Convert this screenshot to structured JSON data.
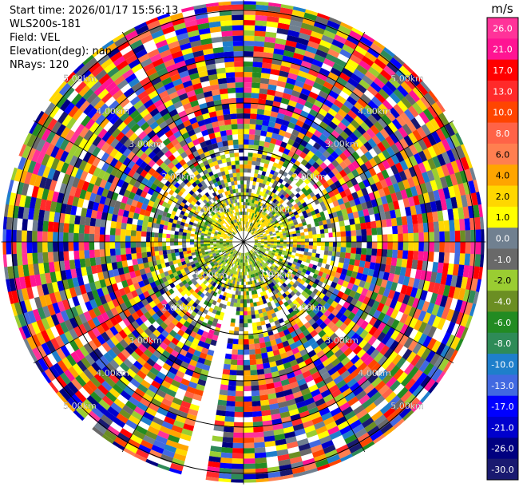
{
  "header": {
    "start_time": "Start time: 2026/01/17 15:56:13",
    "instrument": "WLS200s-181",
    "field": "Field: VEL",
    "elevation": "Elevation(deg): nan",
    "nrays": "NRays: 120"
  },
  "chart_data": {
    "type": "heatmap",
    "projection": "polar-ppi",
    "field": "VEL",
    "units": "m/s",
    "n_rays": 120,
    "range_rings_km": [
      1,
      2,
      3,
      4,
      5
    ],
    "ring_labels": [
      "1.00km",
      "2.00km",
      "3.00km",
      "4.00km",
      "5.00km"
    ],
    "max_range_km": 5.2,
    "missing_azimuth_deg": [
      190,
      194
    ],
    "colorbar": {
      "label": "m/s",
      "ticks": [
        "26.0",
        "21.0",
        "17.0",
        "13.0",
        "10.0",
        "8.0",
        "6.0",
        "4.0",
        "2.0",
        "1.0",
        "0.0",
        "-1.0",
        "-2.0",
        "-4.0",
        "-6.0",
        "-8.0",
        "-10.0",
        "-13.0",
        "-17.0",
        "-21.0",
        "-26.0",
        "-30.0"
      ],
      "colors": [
        "#ff3399",
        "#ff1493",
        "#ff0000",
        "#ff2a2a",
        "#ff4500",
        "#ff6347",
        "#ff7f50",
        "#ffa500",
        "#ffd700",
        "#ffff00",
        "#708090",
        "#696969",
        "#9acd32",
        "#6b8e23",
        "#228b22",
        "#2e8b57",
        "#1e7fcb",
        "#4169e1",
        "#0000ff",
        "#0000cd",
        "#000080",
        "#191970"
      ]
    },
    "near_range_pattern": {
      "inner_colors": [
        "#9acd32",
        "#6b8e23",
        "#708090",
        "#ffd700",
        "#ffff00",
        "#228b22"
      ],
      "mid_colors": [
        "#708090",
        "#9acd32",
        "#ffff00",
        "#ffd700",
        "#696969",
        "#ffa500",
        "#228b22",
        "#000080"
      ]
    }
  }
}
